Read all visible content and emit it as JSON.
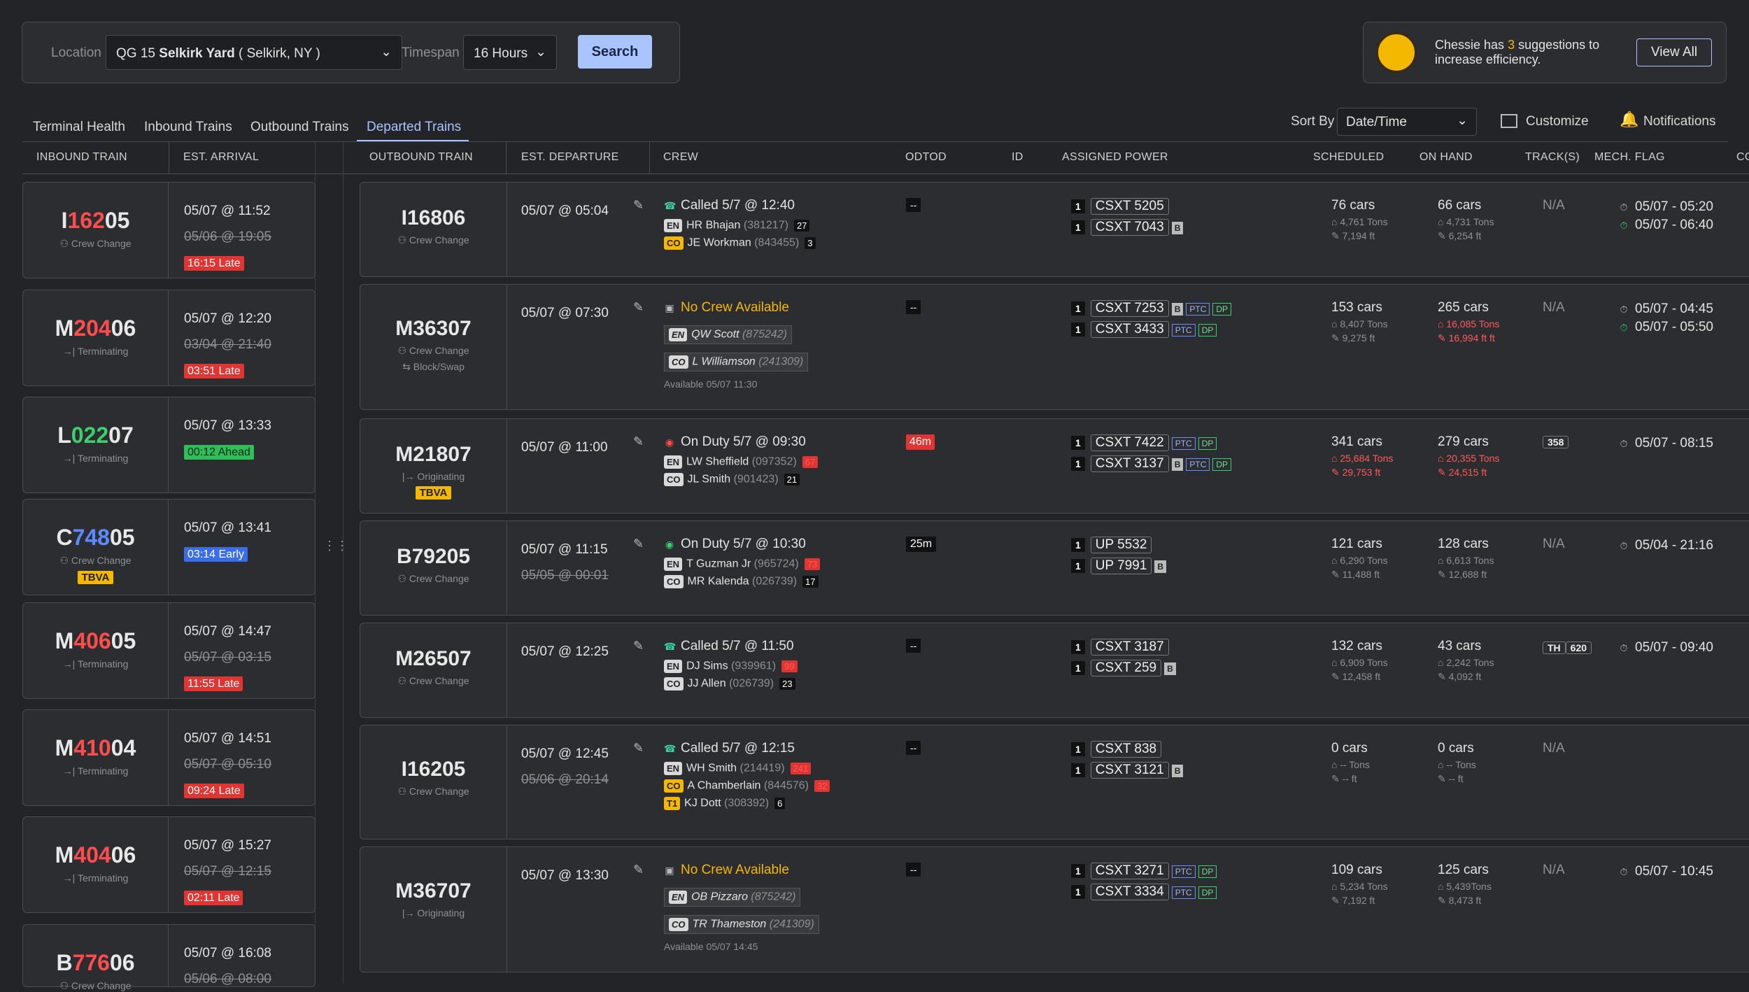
{
  "search": {
    "location_label": "Location",
    "location_value_prefix": "QG 15",
    "location_value_bold": "Selkirk Yard",
    "location_value_suffix": "( Selkirk, NY )",
    "timespan_label": "Timespan",
    "timespan_value": "16 Hours",
    "button": "Search"
  },
  "chessie": {
    "text_pre": "Chessie has",
    "count": "3",
    "text_post": "suggestions to increase efficiency.",
    "button": "View All"
  },
  "tabs": [
    "Terminal Health",
    "Inbound Trains",
    "Outbound Trains",
    "Departed Trains"
  ],
  "toolbar": {
    "sort_label": "Sort By",
    "sort_value": "Date/Time",
    "customize": "Customize",
    "notifications": "Notifications"
  },
  "inbound_headers": [
    "INBOUND TRAIN",
    "EST. ARRIVAL"
  ],
  "outbound_headers": [
    "OUTBOUND TRAIN",
    "EST. DEPARTURE",
    "CREW",
    "ODTOD",
    "ID",
    "ASSIGNED POWER",
    "SCHEDULED",
    "ON HAND",
    "TRACK(S)",
    "MECH. FLAG",
    "CO"
  ],
  "inbound": [
    {
      "pre": "I",
      "mid": "162",
      "post": "05",
      "midcolor": "#ff4d4d",
      "sub": "Crew Change",
      "eta": "05/07 @ 11:52",
      "old": "05/06 @ 19:05",
      "status": "16:15 Late",
      "type": "late"
    },
    {
      "pre": "M",
      "mid": "204",
      "post": "06",
      "midcolor": "#ff4d4d",
      "sub": "Terminating",
      "eta": "05/07 @ 12:20",
      "old": "03/04 @ 21:40",
      "status": "03:51 Late",
      "type": "late"
    },
    {
      "pre": "L",
      "mid": "022",
      "post": "07",
      "midcolor": "#3bd06b",
      "sub": "Terminating",
      "eta": "05/07 @ 13:33",
      "old": "",
      "status": "00:12 Ahead",
      "type": "ahead"
    },
    {
      "pre": "C",
      "mid": "748",
      "post": "05",
      "midcolor": "#5b8cff",
      "sub": "Crew Change",
      "eta": "05/07 @ 13:41",
      "old": "",
      "status": "03:14 Early",
      "type": "early",
      "tbva": "TBVA"
    },
    {
      "pre": "M",
      "mid": "406",
      "post": "05",
      "midcolor": "#ff4d4d",
      "sub": "Terminating",
      "eta": "05/07 @ 14:47",
      "old": "05/07 @ 03:15",
      "status": "11:55 Late",
      "type": "late"
    },
    {
      "pre": "M",
      "mid": "410",
      "post": "04",
      "midcolor": "#ff4d4d",
      "sub": "Terminating",
      "eta": "05/07 @ 14:51",
      "old": "05/07 @ 05:10",
      "status": "09:24 Late",
      "type": "late"
    },
    {
      "pre": "M",
      "mid": "404",
      "post": "06",
      "midcolor": "#ff4d4d",
      "sub": "Terminating",
      "eta": "05/07 @ 15:27",
      "old": "05/07 @ 12:15",
      "status": "02:11 Late",
      "type": "late"
    },
    {
      "pre": "B",
      "mid": "776",
      "post": "06",
      "midcolor": "#ff4d4d",
      "sub": "Crew Change",
      "eta": "05/07 @ 16:08",
      "old": "05/06 @ 08:00",
      "status": "",
      "type": ""
    }
  ],
  "outbound": [
    {
      "id": "I16806",
      "sub": "Crew Change",
      "dep": "05/07 @ 05:04",
      "olddep": "",
      "crew_status": "Called 5/7 @ 12:40",
      "crew_icon": "phone",
      "odtod": "--",
      "crew": [
        {
          "tag": "EN",
          "name": "HR Bhajan",
          "num": "(381217)",
          "cnt": "27",
          "red": false
        },
        {
          "tag": "CO",
          "name": "JE Workman",
          "num": "(843455)",
          "cnt": "3",
          "red": false,
          "yellow": true
        }
      ],
      "power": [
        {
          "n": "1",
          "unit": "CSXT 5205",
          "tags": []
        },
        {
          "n": "1",
          "unit": "CSXT 7043",
          "tags": [
            "B"
          ]
        }
      ],
      "sched": [
        "76 cars",
        "4,761 Tons",
        "7,194 ft"
      ],
      "onhand": [
        "66 cars",
        "4,731 Tons",
        "6,254 ft"
      ],
      "onhand_red": false,
      "track": "N/A",
      "mech": [
        "05/07 - 05:20",
        "05/07 - 06:40"
      ]
    },
    {
      "id": "M36307",
      "sub": "Crew Change",
      "sub2": "Block/Swap",
      "dep": "05/07 @ 07:30",
      "olddep": "",
      "crew_status": "No Crew Available",
      "crew_icon": "cal",
      "odtod": "--",
      "crew": [
        {
          "tag": "EN",
          "name": "QW Scott",
          "num": "(875242)",
          "boxed": true
        },
        {
          "tag": "CO",
          "name": "L Williamson",
          "num": "(241309)",
          "boxed": true
        }
      ],
      "avail": "Available 05/07 11:30",
      "power": [
        {
          "n": "1",
          "unit": "CSXT 7253",
          "tags": [
            "B",
            "PTC",
            "DP"
          ]
        },
        {
          "n": "1",
          "unit": "CSXT 3433",
          "tags": [
            "PTC",
            "DP"
          ]
        }
      ],
      "sched": [
        "153 cars",
        "8,407 Tons",
        "9,275 ft"
      ],
      "onhand": [
        "265 cars",
        "16,085 Tons",
        "16,994 ft ft"
      ],
      "onhand_red": true,
      "track": "N/A",
      "mech": [
        "05/07 - 04:45",
        "05/07 - 05:50"
      ]
    },
    {
      "id": "M21807",
      "sub": "Originating",
      "dep": "05/07 @ 11:00",
      "olddep": "",
      "crew_status": "On Duty 5/7 @ 09:30",
      "crew_icon": "red",
      "odtod": "46m",
      "odtod_red": true,
      "tbva": "TBVA",
      "crew": [
        {
          "tag": "EN",
          "name": "LW Sheffield",
          "num": "(097352)",
          "cnt": "67",
          "red": true
        },
        {
          "tag": "CO",
          "name": "JL Smith",
          "num": "(901423)",
          "cnt": "21",
          "red": false
        }
      ],
      "power": [
        {
          "n": "1",
          "unit": "CSXT 7422",
          "tags": [
            "PTC",
            "DP"
          ]
        },
        {
          "n": "1",
          "unit": "CSXT 3137",
          "tags": [
            "B",
            "PTC",
            "DP"
          ]
        }
      ],
      "sched": [
        "341 cars",
        "25,684 Tons",
        "29,753 ft"
      ],
      "sched_red": true,
      "onhand": [
        "279 cars",
        "20,355 Tons",
        "24,515 ft"
      ],
      "onhand_red": true,
      "track": "358",
      "track_box": true,
      "mech": [
        "05/07 - 08:15"
      ]
    },
    {
      "id": "B79205",
      "sub": "Crew Change",
      "dep": "05/07 @ 11:15",
      "olddep": "05/05 @ 00:01",
      "crew_status": "On Duty 5/7 @ 10:30",
      "crew_icon": "green",
      "odtod": "25m",
      "crew": [
        {
          "tag": "EN",
          "name": "T Guzman Jr",
          "num": "(965724)",
          "cnt": "73",
          "red": true
        },
        {
          "tag": "CO",
          "name": "MR Kalenda",
          "num": "(026739)",
          "cnt": "17",
          "red": false
        }
      ],
      "power": [
        {
          "n": "1",
          "unit": "UP 5532",
          "tags": []
        },
        {
          "n": "1",
          "unit": "UP 7991",
          "tags": [
            "B"
          ]
        }
      ],
      "sched": [
        "121 cars",
        "6,290 Tons",
        "11,488 ft"
      ],
      "onhand": [
        "128 cars",
        "6,613 Tons",
        "12,688 ft"
      ],
      "onhand_red": false,
      "track": "N/A",
      "mech": [
        "05/04 - 21:16"
      ]
    },
    {
      "id": "M26507",
      "sub": "Crew Change",
      "dep": "05/07 @ 12:25",
      "olddep": "",
      "crew_status": "Called 5/7 @ 11:50",
      "crew_icon": "phone",
      "odtod": "--",
      "crew": [
        {
          "tag": "EN",
          "name": "DJ Sims",
          "num": "(939961)",
          "cnt": "99",
          "red": true
        },
        {
          "tag": "CO",
          "name": "JJ Allen",
          "num": "(026739)",
          "cnt": "23",
          "red": false
        }
      ],
      "power": [
        {
          "n": "1",
          "unit": "CSXT 3187",
          "tags": []
        },
        {
          "n": "1",
          "unit": "CSXT 259",
          "tags": [
            "B"
          ]
        }
      ],
      "sched": [
        "132 cars",
        "6,909 Tons",
        "12,458 ft"
      ],
      "onhand": [
        "43 cars",
        "2,242 Tons",
        "4,092 ft"
      ],
      "onhand_red": false,
      "track": "TH",
      "track2": "620",
      "track_box": true,
      "mech": [
        "05/07 - 09:40"
      ]
    },
    {
      "id": "I16205",
      "sub": "Crew Change",
      "dep": "05/07 @ 12:45",
      "olddep": "05/06 @ 20:14",
      "crew_status": "Called 5/7 @ 12:15",
      "crew_icon": "phone",
      "odtod": "--",
      "crew": [
        {
          "tag": "EN",
          "name": "WH Smith",
          "num": "(214419)",
          "cnt": "241",
          "red": true
        },
        {
          "tag": "CO",
          "name": "A Chamberlain",
          "num": "(844576)",
          "cnt": "32",
          "red": true,
          "yellow": true
        },
        {
          "tag": "T1",
          "name": "KJ Dott",
          "num": "(308392)",
          "cnt": "6",
          "red": false,
          "yellow": true
        }
      ],
      "power": [
        {
          "n": "1",
          "unit": "CSXT 838",
          "tags": []
        },
        {
          "n": "1",
          "unit": "CSXT 3121",
          "tags": [
            "B"
          ]
        }
      ],
      "sched": [
        "0 cars",
        "-- Tons",
        "-- ft"
      ],
      "onhand": [
        "0 cars",
        "-- Tons",
        "-- ft"
      ],
      "onhand_red": false,
      "track": "N/A",
      "mech": []
    },
    {
      "id": "M36707",
      "sub": "Originating",
      "dep": "05/07 @ 13:30",
      "olddep": "",
      "crew_status": "No Crew Available",
      "crew_icon": "cal",
      "odtod": "--",
      "crew": [
        {
          "tag": "EN",
          "name": "OB Pizzaro",
          "num": "(875242)",
          "boxed": true
        },
        {
          "tag": "CO",
          "name": "TR Thameston",
          "num": "(241309)",
          "boxed": true
        }
      ],
      "avail": "Available 05/07 14:45",
      "power": [
        {
          "n": "1",
          "unit": "CSXT 3271",
          "tags": [
            "PTC",
            "DP"
          ]
        },
        {
          "n": "1",
          "unit": "CSXT 3334",
          "tags": [
            "PTC",
            "DP"
          ]
        }
      ],
      "sched": [
        "109 cars",
        "5,234 Tons",
        "7,192 ft"
      ],
      "onhand": [
        "125 cars",
        "5,439Tons",
        "8,473 ft"
      ],
      "onhand_red": false,
      "track": "N/A",
      "mech": [
        "05/07 - 10:45"
      ]
    }
  ]
}
